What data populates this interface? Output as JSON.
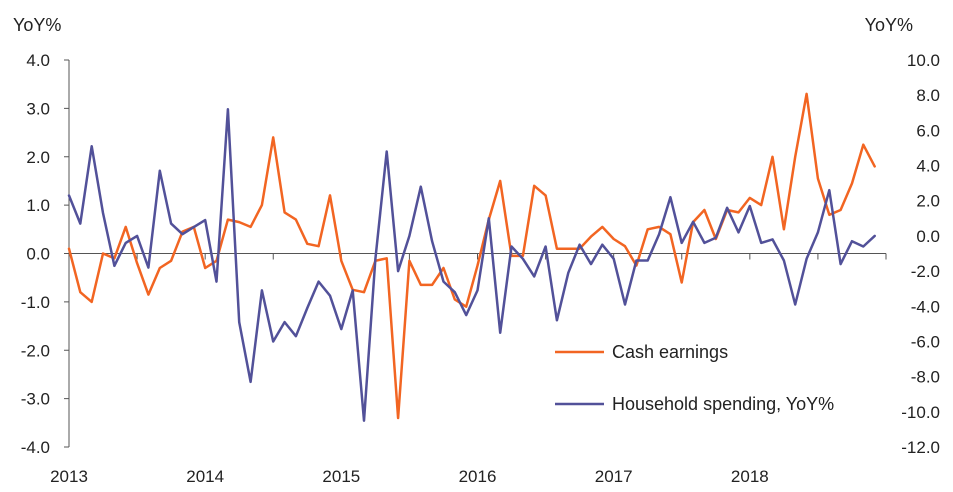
{
  "chart_data": {
    "type": "line",
    "y_left_label": "YoY%",
    "y_right_label": "YoY%",
    "ylim_left": [
      -4.0,
      4.0
    ],
    "ylim_right": [
      -12.0,
      10.0
    ],
    "y_left_ticks": [
      "4.0",
      "3.0",
      "2.0",
      "1.0",
      "0.0",
      "-1.0",
      "-2.0",
      "-3.0",
      "-4.0"
    ],
    "y_left_tick_values": [
      4,
      3,
      2,
      1,
      0,
      -1,
      -2,
      -3,
      -4
    ],
    "y_right_ticks": [
      "10.0",
      "8.0",
      "6.0",
      "4.0",
      "2.0",
      "0.0",
      "-2.0",
      "-4.0",
      "-6.0",
      "-8.0",
      "-10.0",
      "-12.0"
    ],
    "y_right_tick_values": [
      10,
      8,
      6,
      4,
      2,
      0,
      -2,
      -4,
      -6,
      -8,
      -10,
      -12
    ],
    "x_ticks": [
      "2013",
      "2014",
      "2015",
      "2016",
      "2017",
      "2018"
    ],
    "x_tick_values": [
      2013,
      2014,
      2015,
      2016,
      2017,
      2018
    ],
    "xlim": [
      2013,
      2019
    ],
    "grid": false,
    "legend_position": "bottom-right",
    "series": [
      {
        "name": "Cash earnings",
        "axis": "left",
        "color": "#f26522",
        "x_start": 2013.0,
        "x_step": 0.0833333,
        "values": [
          0.1,
          -0.8,
          -1.0,
          0.0,
          -0.1,
          0.55,
          -0.2,
          -0.85,
          -0.3,
          -0.15,
          0.45,
          0.55,
          -0.3,
          -0.15,
          0.7,
          0.65,
          0.55,
          1.0,
          2.4,
          0.85,
          0.7,
          0.2,
          0.15,
          1.2,
          -0.15,
          -0.75,
          -0.8,
          -0.15,
          -0.1,
          -3.4,
          -0.15,
          -0.65,
          -0.65,
          -0.3,
          -0.95,
          -1.1,
          -0.25,
          0.7,
          1.5,
          -0.05,
          -0.05,
          1.4,
          1.2,
          0.1,
          0.1,
          0.1,
          0.35,
          0.55,
          0.3,
          0.15,
          -0.25,
          0.5,
          0.55,
          0.4,
          -0.6,
          0.65,
          0.9,
          0.3,
          0.9,
          0.85,
          1.15,
          1.0,
          2.0,
          0.5,
          2.0,
          3.3,
          1.55,
          0.8,
          0.9,
          1.45,
          2.25,
          1.8
        ]
      },
      {
        "name": "Household spending, YoY%",
        "axis": "right",
        "color": "#525199",
        "x_start": 2013.0,
        "x_step": 0.0833333,
        "values": [
          2.3,
          0.7,
          5.1,
          1.3,
          -1.7,
          -0.4,
          0.0,
          -1.8,
          3.7,
          0.7,
          0.1,
          0.5,
          0.9,
          -2.6,
          7.2,
          -4.9,
          -8.3,
          -3.1,
          -6.0,
          -4.9,
          -5.7,
          -4.1,
          -2.6,
          -3.4,
          -5.3,
          -3.1,
          -10.5,
          -1.3,
          4.8,
          -2.0,
          0.0,
          2.8,
          -0.3,
          -2.6,
          -3.2,
          -4.5,
          -3.1,
          1.0,
          -5.5,
          -0.6,
          -1.3,
          -2.3,
          -0.6,
          -4.8,
          -2.1,
          -0.5,
          -1.6,
          -0.5,
          -1.3,
          -3.9,
          -1.4,
          -1.4,
          0.1,
          2.2,
          -0.4,
          0.8,
          -0.4,
          -0.1,
          1.6,
          0.2,
          1.7,
          -0.4,
          -0.2,
          -1.4,
          -3.9,
          -1.3,
          0.2,
          2.6,
          -1.6,
          -0.3,
          -0.6,
          0.0
        ]
      }
    ]
  }
}
